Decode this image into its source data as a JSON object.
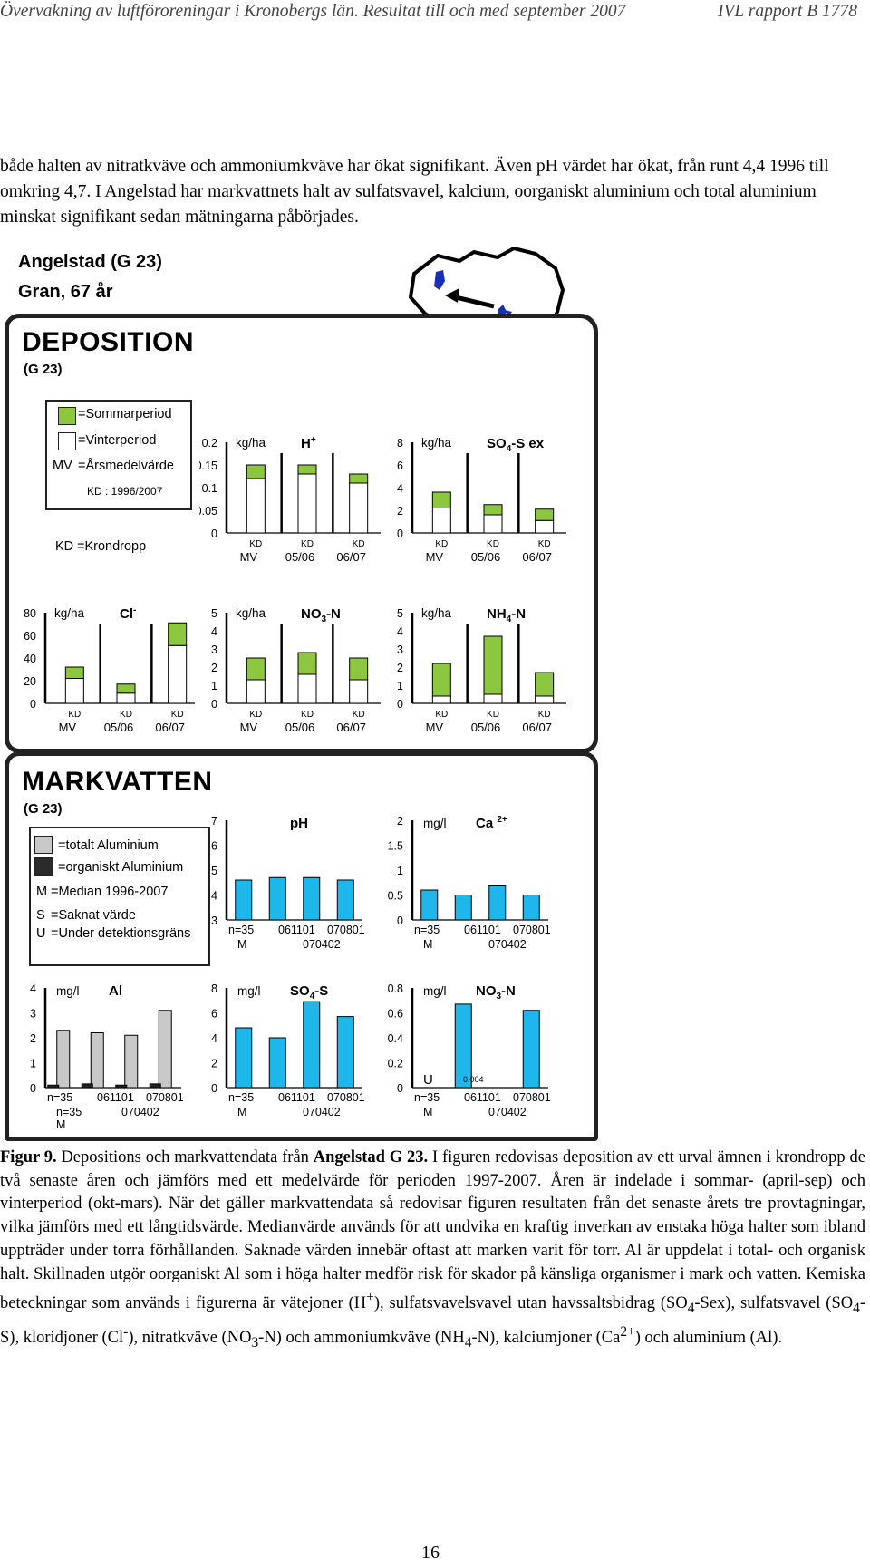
{
  "header": {
    "left": "Övervakning av luftföroreningar i Kronobergs län. Resultat till och med september 2007",
    "right": "IVL rapport B 1778"
  },
  "intro": {
    "text": "både halten av nitratkväve och ammoniumkväve har ökat signifikant. Även pH värdet har ökat, från runt 4,4 1996 till omkring 4,7. I Angelstad har markvattnets halt av sulfatsvavel, kalcium, oorganiskt aluminium och total aluminium minskat signifikant sedan mätningarna påbörjades."
  },
  "site": {
    "name": "Angelstad (G 23)",
    "forest": "Gran, 67 år"
  },
  "colors": {
    "green": "#8dc63f",
    "blue": "#1fb6ec",
    "grey": "#c8c8c8",
    "dark": "#222222"
  },
  "deposition": {
    "title": "DEPOSITION",
    "sub": "(G 23)",
    "legend": {
      "summer": "=Sommarperiod",
      "winter": "=Vinterperiod",
      "mv_key": "MV",
      "mv": "=Årsmedelvärde",
      "kd_note": "KD : 1996/2007",
      "kd_key": "KD",
      "kd": "=Krondropp"
    }
  },
  "markvatten": {
    "title": "MARKVATTEN",
    "sub": "(G 23)",
    "legend": {
      "total": "=totalt Aluminium",
      "org": "=organiskt Aluminium",
      "m_key": "M",
      "m": "=Median 1996-2007",
      "s_key": "S",
      "s": "=Saknat värde",
      "u_key": "U",
      "u": "=Under detektionsgräns"
    }
  },
  "chart_data": [
    {
      "id": "H",
      "type": "bar",
      "title": "H+",
      "unit": "kg/ha",
      "ylim": [
        0,
        0.2
      ],
      "yticks": [
        "0",
        "0.05",
        "0.1",
        "0.15",
        "0.2"
      ],
      "categories": [
        "MV",
        "05/06",
        "06/07"
      ],
      "cat_tag": "KD",
      "summer": [
        0.03,
        0.02,
        0.02
      ],
      "winter": [
        0.12,
        0.13,
        0.11
      ]
    },
    {
      "id": "SO4",
      "type": "bar",
      "title": "SO4-S ex",
      "unit": "kg/ha",
      "ylim": [
        0,
        8
      ],
      "yticks": [
        "0",
        "2",
        "4",
        "6",
        "8"
      ],
      "categories": [
        "MV",
        "05/06",
        "06/07"
      ],
      "cat_tag": "KD",
      "summer": [
        1.4,
        0.9,
        1.0
      ],
      "winter": [
        2.2,
        1.6,
        1.1
      ]
    },
    {
      "id": "Cl",
      "type": "bar",
      "title": "Cl-",
      "unit": "kg/ha",
      "ylim": [
        0,
        80
      ],
      "yticks": [
        "0",
        "20",
        "40",
        "60",
        "80"
      ],
      "categories": [
        "MV",
        "05/06",
        "06/07"
      ],
      "cat_tag": "KD",
      "summer": [
        10,
        8,
        20
      ],
      "winter": [
        22,
        9,
        51
      ]
    },
    {
      "id": "NO3",
      "type": "bar",
      "title": "NO3-N",
      "unit": "kg/ha",
      "ylim": [
        0,
        5
      ],
      "yticks": [
        "0",
        "1",
        "2",
        "3",
        "4",
        "5"
      ],
      "categories": [
        "MV",
        "05/06",
        "06/07"
      ],
      "cat_tag": "KD",
      "summer": [
        1.2,
        1.2,
        1.2
      ],
      "winter": [
        1.3,
        1.6,
        1.3
      ]
    },
    {
      "id": "NH4",
      "type": "bar",
      "title": "NH4-N",
      "unit": "kg/ha",
      "ylim": [
        0,
        5
      ],
      "yticks": [
        "0",
        "1",
        "2",
        "3",
        "4",
        "5"
      ],
      "categories": [
        "MV",
        "05/06",
        "06/07"
      ],
      "cat_tag": "KD",
      "summer": [
        1.8,
        3.2,
        1.3
      ],
      "winter": [
        0.4,
        0.5,
        0.4
      ]
    },
    {
      "id": "pH",
      "type": "bar",
      "title": "pH",
      "unit": "",
      "ylim": [
        3,
        7
      ],
      "baseline": 3,
      "yticks": [
        "3",
        "4",
        "5",
        "6",
        "7"
      ],
      "categories": [
        "n=35",
        "061101",
        "070402",
        "070801"
      ],
      "cat_sub": [
        "M",
        "",
        "",
        ""
      ],
      "values": [
        4.6,
        4.7,
        4.7,
        4.6
      ]
    },
    {
      "id": "Ca",
      "type": "bar",
      "title": "Ca2+",
      "unit": "mg/l",
      "ylim": [
        0,
        2
      ],
      "yticks": [
        "0",
        "0.5",
        "1",
        "1.5",
        "2"
      ],
      "categories": [
        "n=35",
        "061101",
        "070402",
        "070801"
      ],
      "cat_sub": [
        "M",
        "",
        "",
        ""
      ],
      "values": [
        0.6,
        0.5,
        0.7,
        0.5
      ]
    },
    {
      "id": "Al",
      "type": "bar",
      "title": "Al",
      "unit": "mg/l",
      "ylim": [
        0,
        4
      ],
      "yticks": [
        "0",
        "1",
        "2",
        "3",
        "4"
      ],
      "categories": [
        "n=35",
        "061101",
        "070402",
        "070801"
      ],
      "cat_sub": [
        "n=35",
        "",
        "",
        ""
      ],
      "cat_sub2": "M",
      "total": [
        2.3,
        2.2,
        2.1,
        3.1
      ],
      "organic": [
        0.1,
        0.15,
        0.1,
        0.15
      ]
    },
    {
      "id": "SO4S",
      "type": "bar",
      "title": "SO4-S",
      "unit": "mg/l",
      "ylim": [
        0,
        8
      ],
      "yticks": [
        "0",
        "2",
        "4",
        "6",
        "8"
      ],
      "categories": [
        "n=35",
        "061101",
        "070402",
        "070801"
      ],
      "cat_sub": [
        "M",
        "",
        "",
        ""
      ],
      "values": [
        4.8,
        4.0,
        6.9,
        5.7
      ]
    },
    {
      "id": "NO3N",
      "type": "bar",
      "title": "NO3-N",
      "unit": "mg/l",
      "ylim": [
        0,
        0.8
      ],
      "yticks": [
        "0",
        "0.2",
        "0.4",
        "0.6",
        "0.8"
      ],
      "categories": [
        "n=35",
        "061101",
        "070402",
        "070801"
      ],
      "cat_sub": [
        "M",
        "",
        "",
        ""
      ],
      "values": [
        0.0,
        0.67,
        0.0,
        0.62
      ],
      "annot_u": "U",
      "annot_val": "0.004"
    }
  ],
  "caption": {
    "label": "Figur 9.",
    "text_a": " Depositions och markvattendata från ",
    "site_bold": "Angelstad G 23.",
    "text_b": " I figuren redovisas deposition av ett urval ämnen i krondropp de två senaste åren och jämförs med ett medelvärde för perioden 1997-2007. Åren är indelade i sommar- (april-sep) och vinterperiod (okt-mars). När det gäller markvattendata så redovisar figuren resultaten från det senaste årets tre provtagningar, vilka jämförs med ett långtidsvärde. Medianvärde används för att undvika en kraftig inverkan av enstaka höga halter som ibland uppträder under torra förhållanden. Saknade värden innebär oftast att marken varit för torr. Al är uppdelat i total- och organisk halt. Skillnaden utgör oorganiskt Al som i höga halter medför risk för skador på känsliga organismer i mark och vatten. Kemiska beteckningar som används i figurerna är vätejoner (H",
    "sup_h": "+",
    "text_c": "), sulfatsvavelsvavel utan havssaltsbidrag (SO",
    "sub_4a": "4",
    "text_d": "-Sex), sulfatsvavel (SO",
    "sub_4b": "4",
    "text_e": "-S), kloridjoner (Cl",
    "sup_cl": "-",
    "text_f": "), nitratkväve (NO",
    "sub_3": "3",
    "text_g": "-N) och ammoniumkväve (NH",
    "sub_4c": "4",
    "text_h": "-N), kalciumjoner (Ca",
    "sup_ca": "2+",
    "text_i": ") och aluminium (Al)."
  },
  "page_number": "16"
}
